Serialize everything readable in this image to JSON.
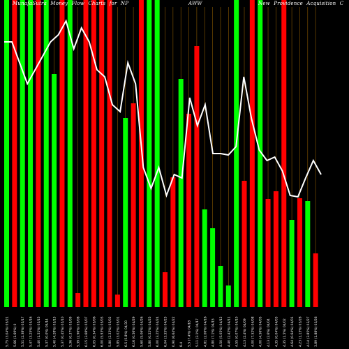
{
  "chart_data": {
    "type": "bar",
    "title_left": "MunafaSutra Money Flow Charts for NP",
    "title_mid": "AWW",
    "title_right": "New Providence Acquisition C",
    "colors": {
      "up": "#00ff00",
      "down": "#ff0000",
      "line": "#ffffff",
      "grid": "#8b5a00",
      "background": "#000000"
    },
    "bar_color_pattern": [
      "G",
      "G",
      "G",
      "R",
      "G",
      "G",
      "G",
      "R",
      "G",
      "R",
      "G",
      "R",
      "R",
      "R",
      "G",
      "R",
      "R",
      "R",
      "G",
      "G",
      "R",
      "R",
      "G",
      "R",
      "G",
      "G",
      "R",
      "G",
      "G",
      "R",
      "G",
      "R",
      "G",
      "G",
      "R",
      "G",
      "G",
      "R",
      "G",
      "R",
      "G",
      "G",
      "R",
      "R",
      "G",
      "R",
      "G",
      "R",
      "G",
      "R",
      "G",
      "R",
      "G",
      "G",
      "R",
      "G",
      "R",
      "G",
      "R",
      "G",
      "R",
      "G",
      "R",
      "G",
      "G",
      "R",
      "G",
      "G",
      "R",
      "G",
      "R",
      "G",
      "G",
      "R",
      "G"
    ],
    "bars": [
      {
        "c": "G",
        "v": 440
      },
      {
        "c": "R",
        "v": 440
      },
      {
        "c": "G",
        "v": 440
      },
      {
        "c": "G",
        "v": 440
      },
      {
        "c": "R",
        "v": 440
      },
      {
        "c": "G",
        "v": 440
      },
      {
        "c": "G",
        "v": 334
      },
      {
        "c": "R",
        "v": 440
      },
      {
        "c": "G",
        "v": 440
      },
      {
        "c": "R",
        "v": 20
      },
      {
        "c": "R",
        "v": 440
      },
      {
        "c": "R",
        "v": 440
      },
      {
        "c": "R",
        "v": 440
      },
      {
        "c": "R",
        "v": 440
      },
      {
        "c": "R",
        "v": 18
      },
      {
        "c": "G",
        "v": 271
      },
      {
        "c": "R",
        "v": 292
      },
      {
        "c": "R",
        "v": 440
      },
      {
        "c": "G",
        "v": 440
      },
      {
        "c": "G",
        "v": 440
      },
      {
        "c": "R",
        "v": 50
      },
      {
        "c": "R",
        "v": 186
      },
      {
        "c": "G",
        "v": 327
      },
      {
        "c": "R",
        "v": 277
      },
      {
        "c": "R",
        "v": 374
      },
      {
        "c": "G",
        "v": 140
      },
      {
        "c": "G",
        "v": 113
      },
      {
        "c": "G",
        "v": 59
      },
      {
        "c": "G",
        "v": 31
      },
      {
        "c": "G",
        "v": 440
      },
      {
        "c": "R",
        "v": 181
      },
      {
        "c": "R",
        "v": 440
      },
      {
        "c": "G",
        "v": 440
      },
      {
        "c": "R",
        "v": 155
      },
      {
        "c": "R",
        "v": 166
      },
      {
        "c": "R",
        "v": 440
      },
      {
        "c": "G",
        "v": 125
      },
      {
        "c": "R",
        "v": 156
      },
      {
        "c": "G",
        "v": 152
      },
      {
        "c": "R",
        "v": 77
      }
    ],
    "line": [
      440,
      440,
      410,
      380,
      400,
      420,
      440,
      450,
      470,
      430,
      460,
      440,
      400,
      390,
      350,
      340,
      410,
      380,
      260,
      230,
      260,
      220,
      250,
      245,
      360,
      320,
      350,
      280,
      280,
      278,
      290,
      390,
      330,
      285,
      270,
      275,
      255,
      220,
      218,
      245,
      270,
      250
    ],
    "x_labels": [
      "5.75 (3.04%) 05/21",
      "5.66 (1.69%) 0",
      "5.51 (2.38%) 05/17",
      "5.47 (3.25%) 05/16",
      "5.40 (1.51%) 05/15",
      "5.37 (0.0%) 05/14",
      "5.40 (4.28%) 05/13",
      "5.37 (0.45%) 05/10",
      "5.36 (0.37%) 05/09",
      "5.39 (2.96%) 05/08",
      "6.15 (3.68%) 05/07",
      "6.05 (0.34%) 05/06",
      "6.00 (5.93%) 05/03",
      "5.80 (2.33%) 05/02",
      "5.85 (3.02%) 05/01",
      "6.5 (5.8%) 04/30",
      "6.16 (0.56%) 04/29",
      "5.60 (5.06%) 04/26",
      "5.80 (0.52%) 04/25",
      "6.00 (3.25%) 04/24",
      "6.04 (3.55%) 04/23",
      "0.90 (6.64%) 04/22",
      "8.4",
      "5.5 (7.4%) 04/18",
      "5.11 (2.1%) 04/17",
      "4.81 (2.06%) 04/16",
      "4.80 (7.1%) 04/15",
      "4.50 (5.05%) 04/12",
      "4.40 (2.42%) 04/11",
      "4.55 (0.07%) 04/10",
      "4.13 (2.4%) 04/09",
      "4.00 (7.52%) 04/08",
      "4.00 (4.56%) 04/05",
      "4.13 (2.6%) 04/04",
      "4.35 (0.04%) 04/03",
      "4.35 (1.5%) 04/02",
      "4.64 (0.64%) 04/01",
      "4.23 (1.13%) 03/28",
      "4.14 (3.85%) 03/27",
      "3.89 (1.88%) 03/26"
    ]
  }
}
